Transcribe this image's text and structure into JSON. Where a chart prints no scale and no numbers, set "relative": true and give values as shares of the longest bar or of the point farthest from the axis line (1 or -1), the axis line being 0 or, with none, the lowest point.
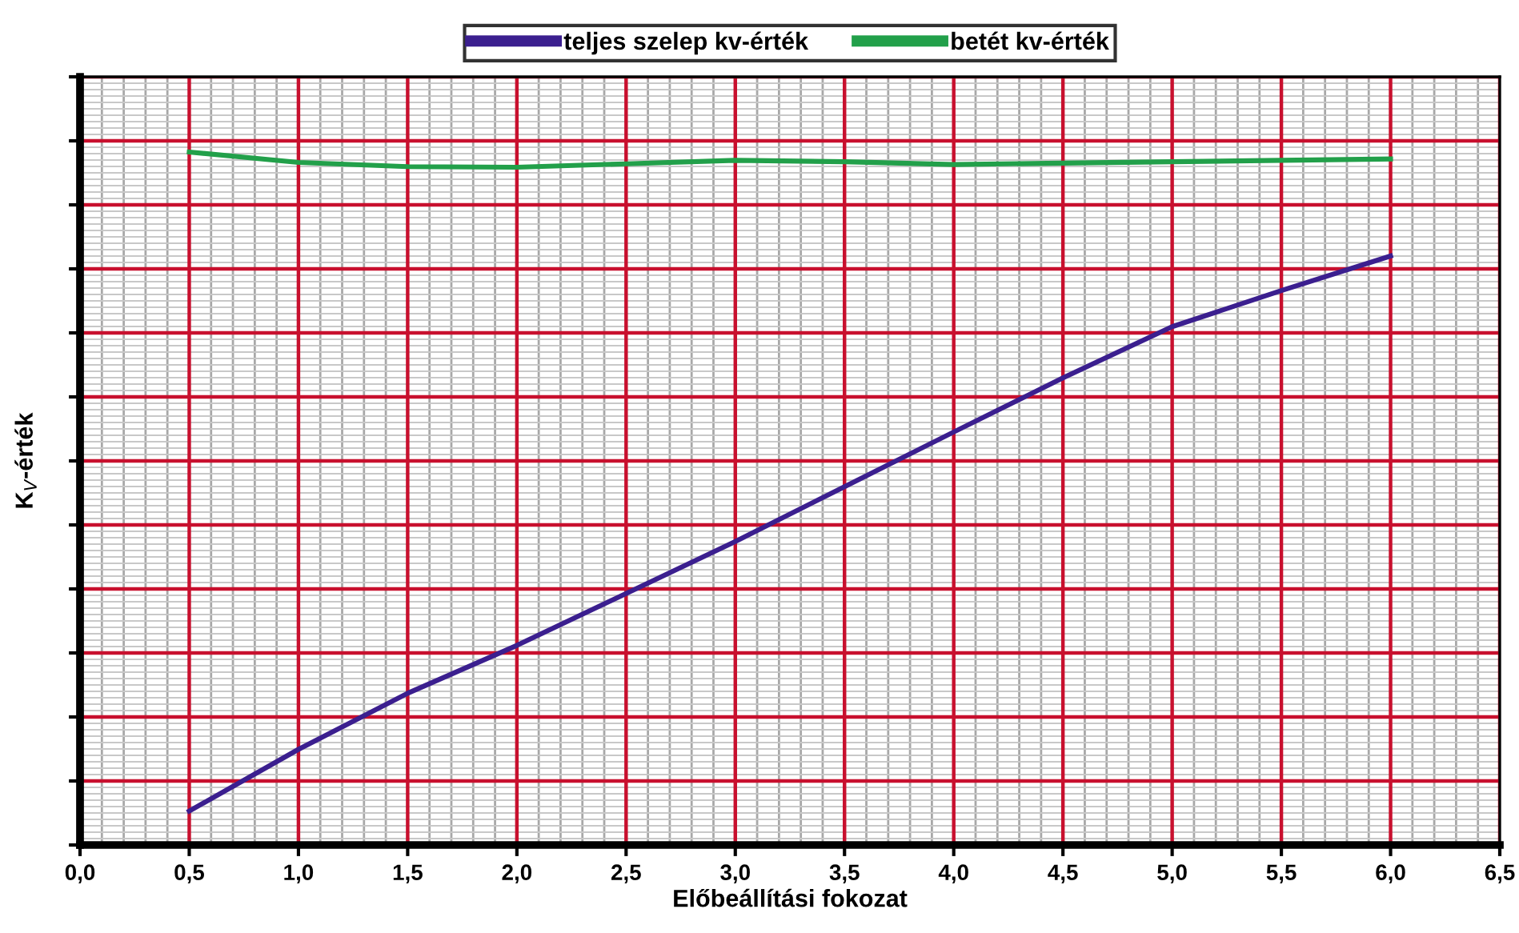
{
  "chart_data": {
    "type": "line",
    "xlabel": "Előbeállítási fokozat",
    "ylabel": "K$_{V}$-érték",
    "relative": true,
    "x": [
      0.5,
      1.0,
      1.5,
      2.0,
      2.5,
      3.0,
      3.5,
      4.0,
      4.5,
      5.0,
      5.5,
      6.0
    ],
    "series": [
      {
        "name": "teljes szelep kv-érték",
        "color": "#3b1f8f",
        "values": [
          0.049,
          0.138,
          0.219,
          0.288,
          0.363,
          0.438,
          0.517,
          0.596,
          0.674,
          0.748,
          0.8,
          0.85
        ]
      },
      {
        "name": "betét kv-érték",
        "color": "#22a04a",
        "values": [
          1,
          0.985,
          0.979,
          0.978,
          0.983,
          0.988,
          0.986,
          0.982,
          0.984,
          0.986,
          0.988,
          0.99
        ]
      }
    ],
    "xlim": [
      0,
      6.5
    ],
    "xticks": [
      {
        "value": 0,
        "label": "0,0"
      },
      {
        "value": 0.5,
        "label": "0,5"
      },
      {
        "value": 1,
        "label": "1,0"
      },
      {
        "value": 1.5,
        "label": "1,5"
      },
      {
        "value": 2,
        "label": "2,0"
      },
      {
        "value": 2.5,
        "label": "2,5"
      },
      {
        "value": 3,
        "label": "3,0"
      },
      {
        "value": 3.5,
        "label": "3,5"
      },
      {
        "value": 4,
        "label": "4,0"
      },
      {
        "value": 4.5,
        "label": "4,5"
      },
      {
        "value": 5,
        "label": "5,0"
      },
      {
        "value": 5.5,
        "label": "5,5"
      },
      {
        "value": 6,
        "label": "6,0"
      },
      {
        "value": 6.5,
        "label": "6,5"
      }
    ],
    "grid": true,
    "legend": "top",
    "marker": "none",
    "line_style": "solid"
  }
}
